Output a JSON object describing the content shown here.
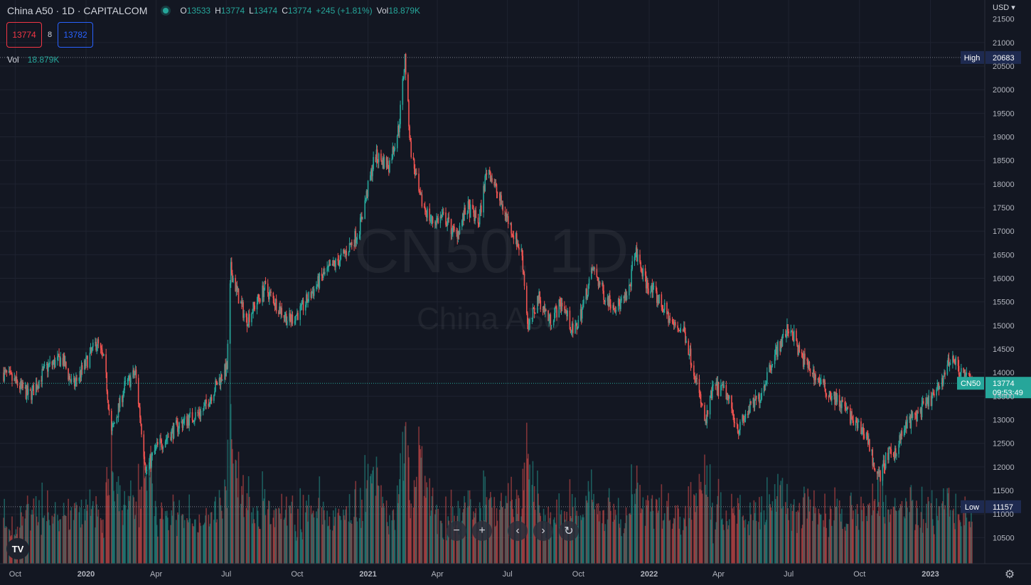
{
  "header": {
    "symbol_title": "China A50 · 1D · CAPITALCOM",
    "open_label": "O",
    "open": "13533",
    "high_label": "H",
    "high": "13774",
    "low_label": "L",
    "low": "13474",
    "close_label": "C",
    "close": "13774",
    "change": "+245 (+1.81%)",
    "vol_label": "Vol",
    "vol": "18.879K"
  },
  "trade": {
    "sell": "13774",
    "spread": "8",
    "buy": "13782"
  },
  "volume_legend": {
    "label": "Vol",
    "value": "18.879K"
  },
  "watermark": {
    "line1": "CN50, 1D",
    "line2": "China A50"
  },
  "currency": "USD",
  "navigation": {
    "zoom_out": "−",
    "zoom_in": "+",
    "back": "‹",
    "forward": "›",
    "reset": "↻"
  },
  "colors": {
    "up": "#26a69a",
    "down": "#ef5350",
    "background": "#131722",
    "grid": "#1f2330",
    "high_low_tag": "#1e2a50"
  },
  "chart_data": {
    "type": "candlestick",
    "title": "China A50 · 1D · CAPITALCOM",
    "y_axis": {
      "ticks": [
        10500,
        11000,
        11500,
        12000,
        12500,
        13000,
        13500,
        14000,
        14500,
        15000,
        15500,
        16000,
        16500,
        17000,
        17500,
        18000,
        18500,
        19000,
        19500,
        20000,
        20500,
        21000
      ],
      "range": [
        10250,
        21450
      ],
      "top_partial_tick": "21500"
    },
    "x_axis": {
      "ticks": [
        "Oct",
        "2020",
        "Apr",
        "Jul",
        "Oct",
        "2021",
        "Apr",
        "Jul",
        "Oct",
        "2022",
        "Apr",
        "Jul",
        "Oct",
        "2023"
      ],
      "tick_dates": [
        "2019-10-01",
        "2020-01-01",
        "2020-04-01",
        "2020-07-01",
        "2020-10-01",
        "2021-01-01",
        "2021-04-01",
        "2021-07-01",
        "2021-10-01",
        "2022-01-01",
        "2022-04-01",
        "2022-07-01",
        "2022-10-01",
        "2023-01-01"
      ],
      "range": [
        "2019-09-15",
        "2023-02-24"
      ]
    },
    "price_path": [
      {
        "date": "2019-09-15",
        "close": 14000
      },
      {
        "date": "2019-10-01",
        "close": 13800
      },
      {
        "date": "2019-10-20",
        "close": 13500
      },
      {
        "date": "2019-11-10",
        "close": 14100
      },
      {
        "date": "2019-12-01",
        "close": 14300
      },
      {
        "date": "2019-12-15",
        "close": 13700
      },
      {
        "date": "2020-01-01",
        "close": 14200
      },
      {
        "date": "2020-01-15",
        "close": 14650
      },
      {
        "date": "2020-01-25",
        "close": 14200
      },
      {
        "date": "2020-02-03",
        "close": 12700
      },
      {
        "date": "2020-02-20",
        "close": 13700
      },
      {
        "date": "2020-03-05",
        "close": 14000
      },
      {
        "date": "2020-03-19",
        "close": 11900
      },
      {
        "date": "2020-04-01",
        "close": 12400
      },
      {
        "date": "2020-05-01",
        "close": 12900
      },
      {
        "date": "2020-06-01",
        "close": 13200
      },
      {
        "date": "2020-06-20",
        "close": 13800
      },
      {
        "date": "2020-07-02",
        "close": 14100
      },
      {
        "date": "2020-07-07",
        "close": 16200
      },
      {
        "date": "2020-07-15",
        "close": 15700
      },
      {
        "date": "2020-07-27",
        "close": 15100
      },
      {
        "date": "2020-08-20",
        "close": 15800
      },
      {
        "date": "2020-09-20",
        "close": 15100
      },
      {
        "date": "2020-10-05",
        "close": 15300
      },
      {
        "date": "2020-11-01",
        "close": 16000
      },
      {
        "date": "2020-12-01",
        "close": 16500
      },
      {
        "date": "2020-12-20",
        "close": 17000
      },
      {
        "date": "2021-01-10",
        "close": 18600
      },
      {
        "date": "2021-01-28",
        "close": 18400
      },
      {
        "date": "2021-02-10",
        "close": 19200
      },
      {
        "date": "2021-02-18",
        "close": 20683
      },
      {
        "date": "2021-02-25",
        "close": 18800
      },
      {
        "date": "2021-03-09",
        "close": 17700
      },
      {
        "date": "2021-03-25",
        "close": 17200
      },
      {
        "date": "2021-04-10",
        "close": 17300
      },
      {
        "date": "2021-04-25",
        "close": 16900
      },
      {
        "date": "2021-05-10",
        "close": 17500
      },
      {
        "date": "2021-05-25",
        "close": 17200
      },
      {
        "date": "2021-06-05",
        "close": 18400
      },
      {
        "date": "2021-06-20",
        "close": 17700
      },
      {
        "date": "2021-07-05",
        "close": 17100
      },
      {
        "date": "2021-07-20",
        "close": 16500
      },
      {
        "date": "2021-07-28",
        "close": 14900
      },
      {
        "date": "2021-08-10",
        "close": 15600
      },
      {
        "date": "2021-08-25",
        "close": 15100
      },
      {
        "date": "2021-09-10",
        "close": 15500
      },
      {
        "date": "2021-09-25",
        "close": 14800
      },
      {
        "date": "2021-10-05",
        "close": 15300
      },
      {
        "date": "2021-10-20",
        "close": 16200
      },
      {
        "date": "2021-11-05",
        "close": 15600
      },
      {
        "date": "2021-11-20",
        "close": 15400
      },
      {
        "date": "2021-12-05",
        "close": 15600
      },
      {
        "date": "2021-12-13",
        "close": 16600
      },
      {
        "date": "2021-12-28",
        "close": 15900
      },
      {
        "date": "2022-01-15",
        "close": 15500
      },
      {
        "date": "2022-02-01",
        "close": 15000
      },
      {
        "date": "2022-02-15",
        "close": 14900
      },
      {
        "date": "2022-03-01",
        "close": 14000
      },
      {
        "date": "2022-03-15",
        "close": 12900
      },
      {
        "date": "2022-03-25",
        "close": 13700
      },
      {
        "date": "2022-04-10",
        "close": 13600
      },
      {
        "date": "2022-04-27",
        "close": 12800
      },
      {
        "date": "2022-05-10",
        "close": 13200
      },
      {
        "date": "2022-05-25",
        "close": 13500
      },
      {
        "date": "2022-06-10",
        "close": 14300
      },
      {
        "date": "2022-07-03",
        "close": 15000
      },
      {
        "date": "2022-07-15",
        "close": 14400
      },
      {
        "date": "2022-08-01",
        "close": 14000
      },
      {
        "date": "2022-08-20",
        "close": 13600
      },
      {
        "date": "2022-09-10",
        "close": 13300
      },
      {
        "date": "2022-09-25",
        "close": 12900
      },
      {
        "date": "2022-10-10",
        "close": 12700
      },
      {
        "date": "2022-10-25",
        "close": 11700
      },
      {
        "date": "2022-11-05",
        "close": 12200
      },
      {
        "date": "2022-11-15",
        "close": 12300
      },
      {
        "date": "2022-12-01",
        "close": 12900
      },
      {
        "date": "2022-12-20",
        "close": 13200
      },
      {
        "date": "2023-01-10",
        "close": 13600
      },
      {
        "date": "2023-01-28",
        "close": 14350
      },
      {
        "date": "2023-02-10",
        "close": 14000
      },
      {
        "date": "2023-02-24",
        "close": 13774
      }
    ],
    "high_marker": {
      "label": "High",
      "value": 20683
    },
    "low_marker": {
      "label": "Low",
      "value": 11157
    },
    "last_price": {
      "symbol": "CN50",
      "value": 13774,
      "countdown": "09:53:49"
    },
    "grid": true,
    "volume_pane": true
  }
}
